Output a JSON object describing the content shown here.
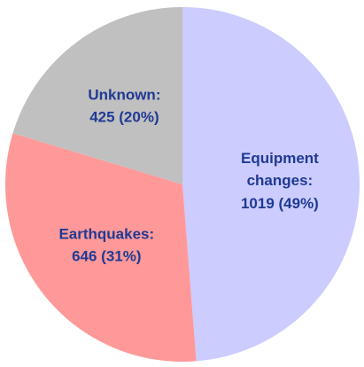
{
  "chart_data": {
    "type": "pie",
    "categories": [
      "Equipment changes:",
      "Earthquakes:",
      "Unknown:"
    ],
    "values": [
      1019,
      646,
      425
    ],
    "value_labels": [
      "1019 (49%)",
      "646 (31%)",
      "425 (20%)"
    ],
    "colors": [
      "#ccccff",
      "#ff9999",
      "#c0c0c0"
    ]
  }
}
